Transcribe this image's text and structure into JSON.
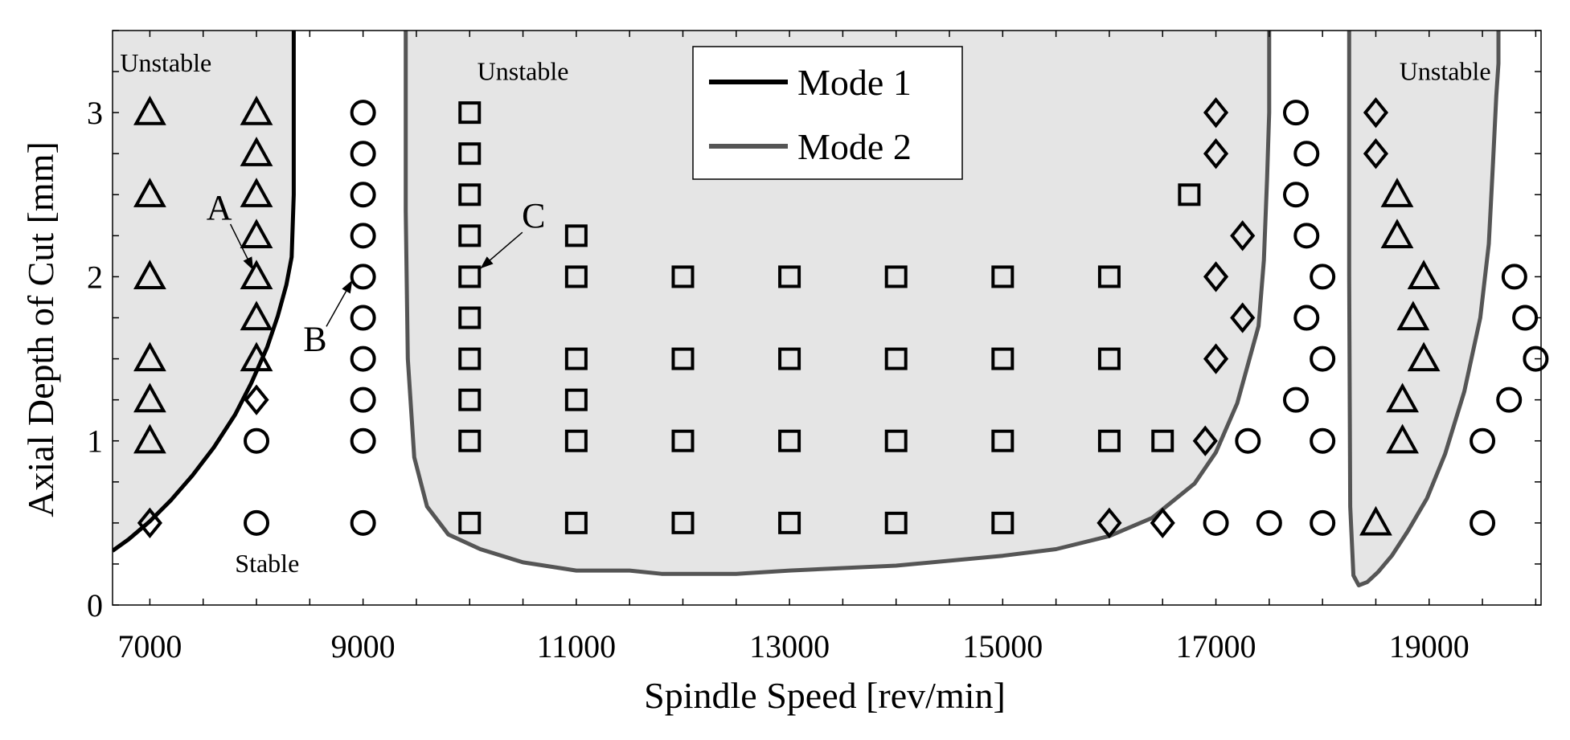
{
  "colors": {
    "unstable_fill": "#e5e5e5",
    "mode1": "#000000",
    "mode2": "#555555",
    "marker": "#000000"
  },
  "chart_data": {
    "type": "scatter",
    "xlabel": "Spindle Speed [rev/min]",
    "ylabel": "Axial Depth of Cut [mm]",
    "xlim": [
      6650,
      20050
    ],
    "ylim": [
      0,
      3.5
    ],
    "xticks": [
      7000,
      9000,
      11000,
      13000,
      15000,
      17000,
      19000
    ],
    "yticks": [
      0,
      1,
      2,
      3
    ],
    "grid": false,
    "legend": {
      "placement": "top-center",
      "entries": [
        {
          "label": "Mode 1",
          "color": "#000000"
        },
        {
          "label": "Mode 2",
          "color": "#555555"
        }
      ]
    },
    "region_labels": [
      {
        "text": "Unstable",
        "x": 7150,
        "y": 3.25
      },
      {
        "text": "Unstable",
        "x": 10500,
        "y": 3.2
      },
      {
        "text": "Unstable",
        "x": 19150,
        "y": 3.2
      },
      {
        "text": "Stable",
        "x": 8100,
        "y": 0.2
      }
    ],
    "point_labels": [
      {
        "text": "A",
        "x": 7650,
        "y": 2.35,
        "target_x": 7970,
        "target_y": 2.04
      },
      {
        "text": "B",
        "x": 8550,
        "y": 1.55,
        "target_x": 8900,
        "target_y": 1.98
      },
      {
        "text": "C",
        "x": 10600,
        "y": 2.3,
        "target_x": 10100,
        "target_y": 2.05
      }
    ],
    "stability_lobes": [
      {
        "name": "Mode 1",
        "x": [
          6650,
          6800,
          7000,
          7200,
          7400,
          7600,
          7800,
          7950,
          8100,
          8200,
          8280,
          8330,
          8350,
          8350
        ],
        "y": [
          0.33,
          0.4,
          0.51,
          0.64,
          0.79,
          0.96,
          1.16,
          1.35,
          1.57,
          1.76,
          1.95,
          2.12,
          2.5,
          3.5
        ]
      },
      {
        "name": "Mode 2",
        "x": [
          9400,
          9400,
          9420,
          9480,
          9600,
          9800,
          10100,
          10500,
          11000,
          11500,
          11800,
          12500,
          13000,
          14000,
          15000,
          15500,
          16000,
          16400,
          16800,
          17000,
          17200,
          17400,
          17450,
          17480,
          17500,
          17500
        ],
        "y": [
          3.5,
          2.4,
          1.5,
          0.9,
          0.6,
          0.43,
          0.34,
          0.26,
          0.21,
          0.21,
          0.19,
          0.19,
          0.21,
          0.24,
          0.3,
          0.34,
          0.42,
          0.53,
          0.74,
          0.93,
          1.23,
          1.7,
          2.1,
          2.6,
          3.0,
          3.5
        ]
      },
      {
        "name": "Mode 2",
        "x": [
          18250,
          18250,
          18260,
          18290,
          18340,
          18420,
          18520,
          18650,
          18800,
          18980,
          19150,
          19330,
          19480,
          19560,
          19600,
          19630,
          19650,
          19650
        ],
        "y": [
          3.5,
          2.0,
          0.6,
          0.18,
          0.12,
          0.14,
          0.2,
          0.3,
          0.45,
          0.65,
          0.92,
          1.3,
          1.75,
          2.2,
          2.7,
          3.1,
          3.3,
          3.5
        ]
      }
    ],
    "series": [
      {
        "name": "triangle",
        "marker": "triangle",
        "points": [
          [
            7000,
            3
          ],
          [
            7000,
            2.5
          ],
          [
            7000,
            2
          ],
          [
            7000,
            1.5
          ],
          [
            7000,
            1.25
          ],
          [
            7000,
            1
          ],
          [
            8000,
            3
          ],
          [
            8000,
            2.75
          ],
          [
            8000,
            2.5
          ],
          [
            8000,
            2.25
          ],
          [
            8000,
            2
          ],
          [
            8000,
            1.75
          ],
          [
            8000,
            1.5
          ],
          [
            18700,
            2.5
          ],
          [
            18700,
            2.25
          ],
          [
            18950,
            2
          ],
          [
            18850,
            1.75
          ],
          [
            18950,
            1.5
          ],
          [
            18750,
            1.25
          ],
          [
            18750,
            1
          ],
          [
            18500,
            0.5
          ]
        ]
      },
      {
        "name": "diamond",
        "marker": "diamond",
        "points": [
          [
            7000,
            0.5
          ],
          [
            8000,
            1.25
          ],
          [
            17000,
            3
          ],
          [
            17000,
            2.75
          ],
          [
            17250,
            2.25
          ],
          [
            17000,
            2
          ],
          [
            17250,
            1.75
          ],
          [
            17000,
            1.5
          ],
          [
            16900,
            1
          ],
          [
            16000,
            0.5
          ],
          [
            16500,
            0.5
          ],
          [
            18500,
            3
          ],
          [
            18500,
            2.75
          ]
        ]
      },
      {
        "name": "circle",
        "marker": "circle",
        "points": [
          [
            8000,
            1
          ],
          [
            8000,
            0.5
          ],
          [
            9000,
            3
          ],
          [
            9000,
            2.75
          ],
          [
            9000,
            2.5
          ],
          [
            9000,
            2.25
          ],
          [
            9000,
            2
          ],
          [
            9000,
            1.75
          ],
          [
            9000,
            1.5
          ],
          [
            9000,
            1.25
          ],
          [
            9000,
            1
          ],
          [
            9000,
            0.5
          ],
          [
            17300,
            1
          ],
          [
            17000,
            0.5
          ],
          [
            17500,
            0.5
          ],
          [
            17750,
            3
          ],
          [
            17850,
            2.75
          ],
          [
            17750,
            2.5
          ],
          [
            17850,
            2.25
          ],
          [
            18000,
            2
          ],
          [
            17850,
            1.75
          ],
          [
            18000,
            1.5
          ],
          [
            17750,
            1.25
          ],
          [
            18000,
            1
          ],
          [
            18000,
            0.5
          ],
          [
            19500,
            1
          ],
          [
            19500,
            0.5
          ],
          [
            19800,
            2
          ],
          [
            19900,
            1.75
          ],
          [
            20000,
            1.5
          ],
          [
            19750,
            1.25
          ]
        ]
      },
      {
        "name": "square",
        "marker": "square",
        "points": [
          [
            10000,
            3
          ],
          [
            10000,
            2.75
          ],
          [
            10000,
            2.5
          ],
          [
            10000,
            2.25
          ],
          [
            10000,
            2
          ],
          [
            10000,
            1.75
          ],
          [
            10000,
            1.5
          ],
          [
            10000,
            1.25
          ],
          [
            10000,
            1
          ],
          [
            10000,
            0.5
          ],
          [
            11000,
            2.25
          ],
          [
            11000,
            2
          ],
          [
            11000,
            1.5
          ],
          [
            11000,
            1.25
          ],
          [
            11000,
            1
          ],
          [
            11000,
            0.5
          ],
          [
            12000,
            2
          ],
          [
            12000,
            1.5
          ],
          [
            12000,
            1
          ],
          [
            12000,
            0.5
          ],
          [
            13000,
            2
          ],
          [
            13000,
            1.5
          ],
          [
            13000,
            1
          ],
          [
            13000,
            0.5
          ],
          [
            14000,
            2
          ],
          [
            14000,
            1.5
          ],
          [
            14000,
            1
          ],
          [
            14000,
            0.5
          ],
          [
            15000,
            2
          ],
          [
            15000,
            1.5
          ],
          [
            15000,
            1
          ],
          [
            15000,
            0.5
          ],
          [
            16000,
            2
          ],
          [
            16000,
            1.5
          ],
          [
            16000,
            1
          ],
          [
            16500,
            1
          ],
          [
            16750,
            2.5
          ]
        ]
      }
    ]
  }
}
